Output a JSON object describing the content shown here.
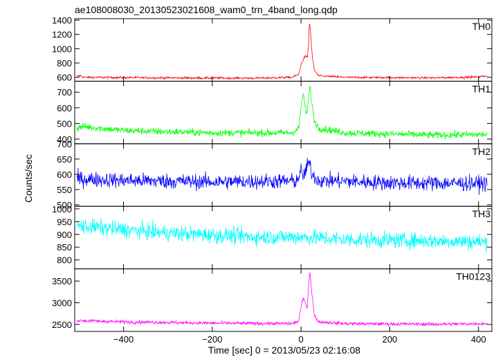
{
  "chart_data": {
    "type": "line",
    "title": "ae108008030_20130523021608_wam0_trn_4band_long.qdp",
    "xlabel": "Time [sec] 0 = 2013/05/23 02:16:08",
    "ylabel": "Counts/sec",
    "xlim": [
      -510,
      430
    ],
    "x_ticks": [
      -400,
      -200,
      0,
      200,
      400
    ],
    "x_tick_labels": [
      "−400",
      "−200",
      "0",
      "200",
      "400"
    ],
    "panels": [
      {
        "name": "TH0",
        "color": "#ff0000",
        "ylim": [
          545,
          1420
        ],
        "y_ticks": [
          600,
          800,
          1000,
          1200,
          1400
        ],
        "y_tick_labels": [
          "600",
          "800",
          "1000",
          "1200",
          "1400"
        ],
        "profile": [
          [
            -505,
            610
          ],
          [
            -497,
            625
          ],
          [
            -490,
            600
          ],
          [
            -300,
            592
          ],
          [
            -100,
            588
          ],
          [
            -20,
            600
          ],
          [
            -5,
            640
          ],
          [
            0,
            780
          ],
          [
            5,
            850
          ],
          [
            10,
            900
          ],
          [
            14,
            870
          ],
          [
            17,
            1050
          ],
          [
            19,
            1380
          ],
          [
            22,
            1200
          ],
          [
            25,
            900
          ],
          [
            30,
            700
          ],
          [
            40,
            620
          ],
          [
            100,
            600
          ],
          [
            300,
            592
          ],
          [
            400,
            605
          ],
          [
            420,
            620
          ]
        ],
        "noise": 15
      },
      {
        "name": "TH1",
        "color": "#00ff00",
        "ylim": [
          370,
          770
        ],
        "y_ticks": [
          400,
          500,
          600,
          700
        ],
        "y_tick_labels": [
          "400",
          "500",
          "600",
          "700"
        ],
        "profile": [
          [
            -505,
            470
          ],
          [
            -490,
            480
          ],
          [
            -400,
            455
          ],
          [
            -200,
            440
          ],
          [
            -20,
            440
          ],
          [
            -5,
            470
          ],
          [
            0,
            600
          ],
          [
            4,
            690
          ],
          [
            8,
            630
          ],
          [
            13,
            560
          ],
          [
            17,
            650
          ],
          [
            20,
            740
          ],
          [
            24,
            640
          ],
          [
            30,
            520
          ],
          [
            40,
            470
          ],
          [
            100,
            440
          ],
          [
            300,
            425
          ],
          [
            420,
            430
          ]
        ],
        "noise": 22
      },
      {
        "name": "TH2",
        "color": "#0000ff",
        "ylim": [
          495,
          700
        ],
        "y_ticks": [
          500,
          550,
          600,
          650,
          700
        ],
        "y_tick_labels": [
          "500",
          "550",
          "600",
          "650",
          "700"
        ],
        "profile": [
          [
            -505,
            585
          ],
          [
            -400,
            580
          ],
          [
            -200,
            575
          ],
          [
            -10,
            578
          ],
          [
            0,
            610
          ],
          [
            5,
            592
          ],
          [
            18,
            640
          ],
          [
            25,
            600
          ],
          [
            40,
            580
          ],
          [
            200,
            572
          ],
          [
            420,
            570
          ]
        ],
        "noise": 24
      },
      {
        "name": "TH3",
        "color": "#00ffff",
        "ylim": [
          765,
          1010
        ],
        "y_ticks": [
          800,
          850,
          900,
          950,
          1000
        ],
        "y_tick_labels": [
          "800",
          "850",
          "900",
          "950",
          "1000"
        ],
        "profile": [
          [
            -505,
            935
          ],
          [
            -450,
            925
          ],
          [
            -300,
            905
          ],
          [
            -100,
            890
          ],
          [
            0,
            890
          ],
          [
            100,
            880
          ],
          [
            300,
            875
          ],
          [
            420,
            870
          ]
        ],
        "noise": 30
      },
      {
        "name": "TH0123",
        "color": "#ff00ff",
        "ylim": [
          2340,
          3780
        ],
        "y_ticks": [
          2500,
          3000,
          3500
        ],
        "y_tick_labels": [
          "2500",
          "3000",
          "3500"
        ],
        "profile": [
          [
            -505,
            2590
          ],
          [
            -400,
            2560
          ],
          [
            -200,
            2530
          ],
          [
            -20,
            2520
          ],
          [
            -5,
            2580
          ],
          [
            0,
            2900
          ],
          [
            5,
            3100
          ],
          [
            10,
            2980
          ],
          [
            14,
            2900
          ],
          [
            17,
            3400
          ],
          [
            20,
            3740
          ],
          [
            24,
            3250
          ],
          [
            30,
            2700
          ],
          [
            40,
            2560
          ],
          [
            100,
            2520
          ],
          [
            300,
            2505
          ],
          [
            420,
            2520
          ]
        ],
        "noise": 38
      }
    ]
  }
}
